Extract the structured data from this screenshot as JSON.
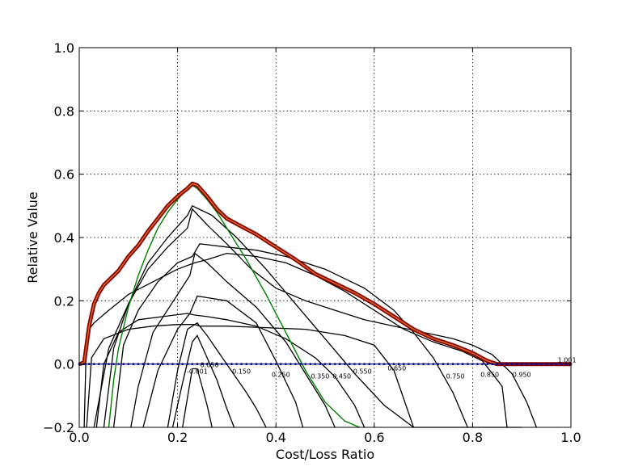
{
  "chart_data": {
    "type": "line",
    "xlabel": "Cost/Loss Ratio",
    "ylabel": "Relative Value",
    "xlim": [
      0.0,
      1.0
    ],
    "ylim": [
      -0.2,
      1.0
    ],
    "grid": true,
    "x_ticks": [
      "0.0",
      "0.2",
      "0.4",
      "0.6",
      "0.8",
      "1.0"
    ],
    "y_ticks": [
      "−0.2",
      "0.0",
      "0.2",
      "0.4",
      "0.6",
      "0.8",
      "1.0"
    ],
    "colors": {
      "envelope_outer": "#8b0000",
      "envelope_inner": "#d2691e",
      "highlight_curve": "#008000",
      "threshold_curves": "#000000",
      "zero_line": "#000080"
    },
    "envelope": {
      "x": [
        0.0,
        0.01,
        0.02,
        0.03,
        0.04,
        0.05,
        0.06,
        0.08,
        0.1,
        0.12,
        0.14,
        0.16,
        0.18,
        0.2,
        0.22,
        0.23,
        0.24,
        0.26,
        0.28,
        0.3,
        0.33,
        0.36,
        0.4,
        0.44,
        0.48,
        0.52,
        0.56,
        0.6,
        0.64,
        0.68,
        0.72,
        0.76,
        0.8,
        0.83,
        0.85,
        0.87,
        0.9,
        1.0
      ],
      "y": [
        0.0,
        0.005,
        0.12,
        0.19,
        0.225,
        0.25,
        0.265,
        0.295,
        0.34,
        0.375,
        0.42,
        0.46,
        0.5,
        0.53,
        0.555,
        0.57,
        0.565,
        0.53,
        0.49,
        0.46,
        0.435,
        0.41,
        0.37,
        0.33,
        0.285,
        0.255,
        0.225,
        0.19,
        0.15,
        0.11,
        0.08,
        0.06,
        0.035,
        0.01,
        0.0,
        0.0,
        0.0,
        0.0
      ]
    },
    "series": [
      {
        "label": "-0.001",
        "x": [
          0.21,
          0.23,
          0.24,
          0.26,
          0.27
        ],
        "y": [
          -0.2,
          -0.015,
          -0.015,
          -0.13,
          -0.2
        ]
      },
      {
        "label": "0.050",
        "x": [
          0.19,
          0.21,
          0.23,
          0.24,
          0.26,
          0.28,
          0.3,
          0.315
        ],
        "y": [
          -0.2,
          -0.06,
          0.07,
          0.09,
          0.02,
          -0.05,
          -0.14,
          -0.2
        ]
      },
      {
        "label": "0.150",
        "x": [
          0.18,
          0.2,
          0.22,
          0.24,
          0.26,
          0.3,
          0.34,
          0.36,
          0.38
        ],
        "y": [
          -0.2,
          -0.02,
          0.11,
          0.13,
          0.09,
          0.0,
          -0.09,
          -0.14,
          -0.2
        ]
      },
      {
        "label": "0.250",
        "x": [
          0.13,
          0.16,
          0.2,
          0.225,
          0.24,
          0.3,
          0.36,
          0.4,
          0.44,
          0.455
        ],
        "y": [
          -0.2,
          -0.02,
          0.11,
          0.16,
          0.215,
          0.2,
          0.13,
          0.01,
          -0.12,
          -0.2
        ]
      },
      {
        "label": "0.350",
        "x": [
          0.105,
          0.12,
          0.15,
          0.2,
          0.225,
          0.235,
          0.26,
          0.3,
          0.36,
          0.42,
          0.46,
          0.5,
          0.52
        ],
        "y": [
          -0.2,
          -0.07,
          0.1,
          0.22,
          0.28,
          0.35,
          0.32,
          0.26,
          0.18,
          0.07,
          -0.03,
          -0.13,
          -0.2
        ]
      },
      {
        "label": "0.450",
        "x": [
          0.035,
          0.05,
          0.08,
          0.12,
          0.17,
          0.22,
          0.235,
          0.26,
          0.3,
          0.36,
          0.42,
          0.48,
          0.52,
          0.56,
          0.58
        ],
        "y": [
          -0.2,
          0.0,
          0.1,
          0.14,
          0.15,
          0.16,
          0.155,
          0.15,
          0.14,
          0.12,
          0.08,
          0.02,
          -0.04,
          -0.13,
          -0.2
        ]
      },
      {
        "label": "0.550",
        "x": [
          0.015,
          0.025,
          0.05,
          0.1,
          0.15,
          0.2,
          0.235,
          0.245,
          0.3,
          0.38,
          0.46,
          0.54,
          0.6,
          0.64,
          0.68
        ],
        "y": [
          -0.2,
          0.02,
          0.08,
          0.11,
          0.12,
          0.125,
          0.125,
          0.12,
          0.12,
          0.115,
          0.11,
          0.09,
          0.06,
          -0.02,
          -0.2
        ]
      },
      {
        "label": "0.650",
        "x": [
          0.07,
          0.09,
          0.12,
          0.16,
          0.2,
          0.23,
          0.245,
          0.3,
          0.36,
          0.42,
          0.5,
          0.58,
          0.64,
          0.68,
          0.72,
          0.76,
          0.79
        ],
        "y": [
          -0.2,
          0.06,
          0.17,
          0.26,
          0.32,
          0.34,
          0.38,
          0.37,
          0.36,
          0.34,
          0.3,
          0.24,
          0.17,
          0.1,
          0.02,
          -0.09,
          -0.2
        ]
      },
      {
        "label": "0.750",
        "x": [
          0.01,
          0.015,
          0.03,
          0.06,
          0.1,
          0.15,
          0.2,
          0.235,
          0.26,
          0.3,
          0.36,
          0.42,
          0.48,
          0.54,
          0.6,
          0.66,
          0.72,
          0.78,
          0.82,
          0.86,
          0.87
        ],
        "y": [
          -0.2,
          0.1,
          0.13,
          0.17,
          0.22,
          0.26,
          0.3,
          0.32,
          0.33,
          0.35,
          0.34,
          0.32,
          0.28,
          0.23,
          0.17,
          0.11,
          0.07,
          0.04,
          0.01,
          -0.07,
          -0.2
        ]
      },
      {
        "label": "0.850",
        "x": [
          0.03,
          0.06,
          0.1,
          0.14,
          0.18,
          0.22,
          0.23,
          0.26,
          0.3,
          0.35,
          0.4,
          0.46,
          0.52,
          0.58,
          0.64,
          0.7,
          0.76,
          0.8,
          0.84,
          0.88,
          0.91,
          0.93
        ],
        "y": [
          -0.2,
          0.05,
          0.19,
          0.3,
          0.37,
          0.43,
          0.49,
          0.44,
          0.38,
          0.3,
          0.24,
          0.2,
          0.17,
          0.14,
          0.12,
          0.1,
          0.08,
          0.06,
          0.03,
          -0.03,
          -0.12,
          -0.2
        ]
      },
      {
        "label": "0.950",
        "x": [
          0.05,
          0.07,
          0.1,
          0.14,
          0.18,
          0.22,
          0.23,
          0.27,
          0.32,
          0.38,
          0.44,
          0.5,
          0.56,
          0.62,
          0.68,
          0.74,
          0.8,
          0.85,
          0.88,
          0.9
        ],
        "y": [
          -0.2,
          0.05,
          0.19,
          0.32,
          0.4,
          0.47,
          0.5,
          0.47,
          0.4,
          0.3,
          0.19,
          0.08,
          -0.03,
          -0.13,
          -0.2,
          -0.2,
          -0.2,
          -0.2,
          -0.2,
          -0.2
        ]
      }
    ],
    "highlight": {
      "color": "#008000",
      "x": [
        0.06,
        0.07,
        0.08,
        0.1,
        0.12,
        0.14,
        0.16,
        0.18,
        0.2,
        0.22,
        0.23,
        0.24,
        0.26,
        0.28,
        0.3,
        0.34,
        0.38,
        0.42,
        0.46,
        0.5,
        0.54,
        0.57
      ],
      "y": [
        -0.2,
        -0.05,
        0.05,
        0.18,
        0.28,
        0.36,
        0.43,
        0.48,
        0.52,
        0.555,
        0.565,
        0.555,
        0.52,
        0.48,
        0.43,
        0.33,
        0.22,
        0.1,
        -0.02,
        -0.12,
        -0.18,
        -0.2
      ]
    },
    "curve_labels": [
      {
        "text": "-0.001",
        "x": 0.24,
        "y": -0.03
      },
      {
        "text": "0.050",
        "x": 0.265,
        "y": -0.01
      },
      {
        "text": "0.150",
        "x": 0.33,
        "y": -0.03
      },
      {
        "text": "0.250",
        "x": 0.41,
        "y": -0.04
      },
      {
        "text": "0.350",
        "x": 0.49,
        "y": -0.045
      },
      {
        "text": "0.450",
        "x": 0.534,
        "y": -0.045
      },
      {
        "text": "0.550",
        "x": 0.576,
        "y": -0.03
      },
      {
        "text": "0.650",
        "x": 0.646,
        "y": -0.02
      },
      {
        "text": "0.750",
        "x": 0.765,
        "y": -0.045
      },
      {
        "text": "0.850",
        "x": 0.835,
        "y": -0.04
      },
      {
        "text": "0.950",
        "x": 0.9,
        "y": -0.04
      },
      {
        "text": "1.001",
        "x": 0.992,
        "y": 0.005
      }
    ]
  }
}
